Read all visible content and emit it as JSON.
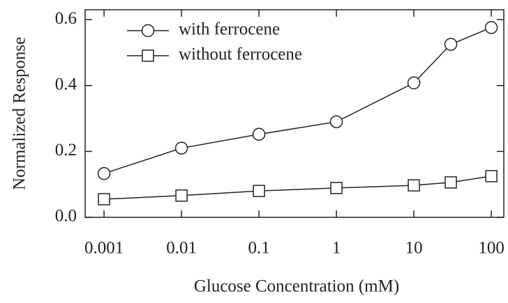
{
  "chart_data": {
    "type": "line",
    "xlabel": "Glucose Concentration (mM)",
    "ylabel": "Normalized Response",
    "x": [
      0.001,
      0.01,
      0.1,
      1,
      10,
      30,
      100
    ],
    "series": [
      {
        "name": "with ferrocene",
        "color": "#222222",
        "marker": "circle",
        "values": [
          0.133,
          0.21,
          0.252,
          0.29,
          0.408,
          0.525,
          0.576
        ]
      },
      {
        "name": "without ferrocene",
        "color": "#222222",
        "marker": "square",
        "values": [
          0.055,
          0.066,
          0.08,
          0.089,
          0.097,
          0.106,
          0.125
        ]
      }
    ],
    "xscale": "log",
    "xlim": [
      0.00057,
      145
    ],
    "xticks": [
      0.001,
      0.01,
      0.1,
      1,
      10,
      100
    ],
    "ylim": [
      0,
      0.63
    ],
    "yticks": [
      {
        "value": 0,
        "label": "0.0"
      },
      0.2,
      0.4,
      0.6
    ],
    "legend": "upper left",
    "grid": false
  }
}
